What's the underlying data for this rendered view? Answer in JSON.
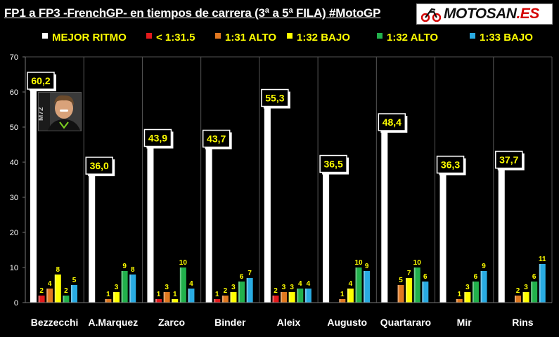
{
  "header": {
    "title": "FP1 a FP3 -FrenchGP- en tiempos de carrera (3ª a 5ª FILA) #MotoGP",
    "logo_text": "MOTOSAN",
    "logo_suffix": ".ES"
  },
  "photo": {
    "badge": "M72"
  },
  "chart_data": {
    "type": "bar",
    "categories": [
      "Bezzecchi",
      "A.Marquez",
      "Zarco",
      "Binder",
      "Aleix",
      "Augusto",
      "Quartararo",
      "Mir",
      "Rins"
    ],
    "series": [
      {
        "name": "MEJOR RITMO",
        "color": "#ffffff",
        "values": [
          60.2,
          36.0,
          43.9,
          43.7,
          55.3,
          36.5,
          48.4,
          36.3,
          37.7
        ]
      },
      {
        "name": "< 1:31.5",
        "color": "#e31a1c",
        "values": [
          2,
          0,
          1,
          1,
          2,
          0,
          0,
          0,
          0
        ]
      },
      {
        "name": "1:31 ALTO",
        "color": "#e07820",
        "values": [
          4,
          1,
          3,
          2,
          3,
          1,
          5,
          1,
          2
        ]
      },
      {
        "name": "1:32 BAJO",
        "color": "#ffff00",
        "values": [
          8,
          3,
          1,
          3,
          3,
          4,
          7,
          3,
          3
        ]
      },
      {
        "name": "1:32 ALTO",
        "color": "#22b14c",
        "values": [
          2,
          9,
          10,
          6,
          4,
          10,
          10,
          6,
          6
        ]
      },
      {
        "name": "1:33 BAJO",
        "color": "#29abe2",
        "values": [
          5,
          8,
          4,
          7,
          4,
          9,
          6,
          9,
          11
        ]
      }
    ],
    "value_labels": [
      [
        "60,2",
        "2",
        "4",
        "8",
        "2",
        "5"
      ],
      [
        "36,0",
        "",
        "1",
        "3",
        "9",
        "8"
      ],
      [
        "43,9",
        "1",
        "3",
        "1",
        "10",
        "4"
      ],
      [
        "43,7",
        "1",
        "2",
        "3",
        "6",
        "7"
      ],
      [
        "55,3",
        "2",
        "3",
        "3",
        "4",
        "4"
      ],
      [
        "36,5",
        "",
        "1",
        "4",
        "10",
        "9"
      ],
      [
        "48,4",
        "",
        "5",
        "7",
        "10",
        "6"
      ],
      [
        "36,3",
        "",
        "1",
        "3",
        "6",
        "9"
      ],
      [
        "37,7",
        "",
        "2",
        "3",
        "6",
        "11"
      ]
    ],
    "yticks": [
      "0",
      "10",
      "20",
      "30",
      "40",
      "50",
      "60",
      "70"
    ],
    "ylim": [
      0,
      70
    ],
    "legend_position": "top",
    "grid": false,
    "title": "FP1 a FP3 -FrenchGP- en tiempos de carrera (3ª a 5ª FILA) #MotoGP",
    "xlabel": "",
    "ylabel": ""
  }
}
